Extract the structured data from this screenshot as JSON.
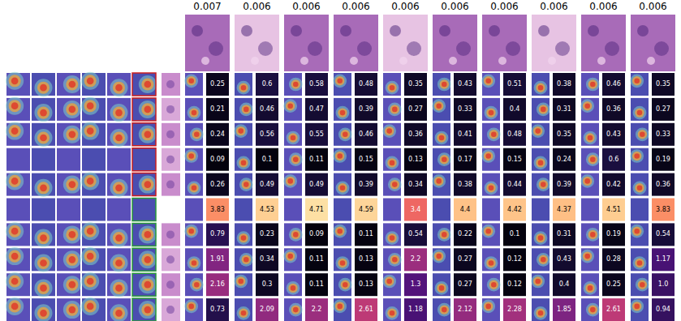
{
  "chart_data": {
    "type": "annotated_grid",
    "column_scores": [
      0.007,
      0.006,
      0.006,
      0.006,
      0.006,
      0.006,
      0.006,
      0.006,
      0.006,
      0.006
    ],
    "values": [
      [
        0.25,
        0.6,
        0.58,
        0.48,
        0.35,
        0.43,
        0.51,
        0.38,
        0.46,
        0.35
      ],
      [
        0.21,
        0.46,
        0.47,
        0.39,
        0.27,
        0.33,
        0.4,
        0.31,
        0.36,
        0.27
      ],
      [
        0.24,
        0.56,
        0.55,
        0.46,
        0.36,
        0.41,
        0.48,
        0.35,
        0.43,
        0.33
      ],
      [
        0.09,
        0.1,
        0.11,
        0.15,
        0.13,
        0.17,
        0.15,
        0.24,
        0.6,
        0.19
      ],
      [
        0.26,
        0.49,
        0.49,
        0.39,
        0.34,
        0.38,
        0.44,
        0.39,
        0.42,
        0.36
      ],
      [
        3.83,
        4.53,
        4.71,
        4.59,
        3.4,
        4.4,
        4.42,
        4.37,
        4.51,
        3.83
      ],
      [
        0.79,
        0.23,
        0.09,
        0.11,
        0.54,
        0.22,
        0.1,
        0.31,
        0.19,
        0.54
      ],
      [
        1.91,
        0.34,
        0.11,
        0.13,
        2.2,
        0.27,
        0.12,
        0.43,
        0.28,
        1.17
      ],
      [
        2.16,
        0.3,
        0.11,
        0.13,
        1.3,
        0.27,
        0.12,
        0.4,
        0.25,
        1
      ],
      [
        0.73,
        2.09,
        2.2,
        2.61,
        1.18,
        2.12,
        2.28,
        1.85,
        2.61,
        0.94
      ]
    ],
    "value_labels": [
      [
        "0.25",
        "0.6",
        "0.58",
        "0.48",
        "0.35",
        "0.43",
        "0.51",
        "0.38",
        "0.46",
        "0.35"
      ],
      [
        "0.21",
        "0.46",
        "0.47",
        "0.39",
        "0.27",
        "0.33",
        "0.4",
        "0.31",
        "0.36",
        "0.27"
      ],
      [
        "0.24",
        "0.56",
        "0.55",
        "0.46",
        "0.36",
        "0.41",
        "0.48",
        "0.35",
        "0.43",
        "0.33"
      ],
      [
        "0.09",
        "0.1",
        "0.11",
        "0.15",
        "0.13",
        "0.17",
        "0.15",
        "0.24",
        "0.6",
        "0.19"
      ],
      [
        "0.26",
        "0.49",
        "0.49",
        "0.39",
        "0.34",
        "0.38",
        "0.44",
        "0.39",
        "0.42",
        "0.36"
      ],
      [
        "3.83",
        "4.53",
        "4.71",
        "4.59",
        "3.4",
        "4.4",
        "4.42",
        "4.37",
        "4.51",
        "3.83"
      ],
      [
        "0.79",
        "0.23",
        "0.09",
        "0.11",
        "0.54",
        "0.22",
        "0.1",
        "0.31",
        "0.19",
        "0.54"
      ],
      [
        "1.91",
        "0.34",
        "0.11",
        "0.13",
        "2.2",
        "0.27",
        "0.12",
        "0.43",
        "0.28",
        "1.17"
      ],
      [
        "2.16",
        "0.3",
        "0.11",
        "0.13",
        "1.3",
        "0.27",
        "0.12",
        "0.4",
        "0.25",
        "1.0"
      ],
      [
        "0.73",
        "2.09",
        "2.2",
        "2.61",
        "1.18",
        "2.12",
        "2.28",
        "1.85",
        "2.61",
        "0.94"
      ]
    ],
    "zlim": [
      0,
      5
    ],
    "data_labels": true,
    "tick_labels": false
  }
}
